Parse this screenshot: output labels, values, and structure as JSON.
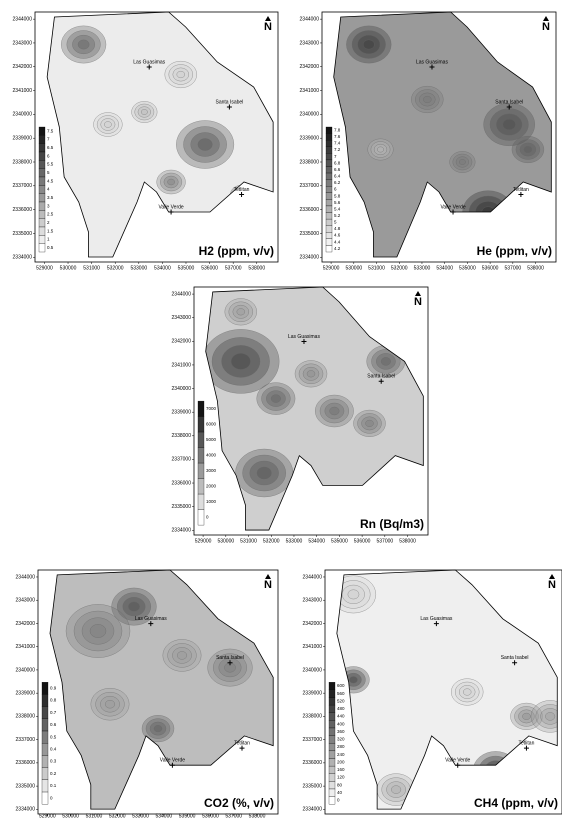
{
  "north_label": "N",
  "maps": [
    {
      "title": "H2 (ppm, v/v)",
      "places": [
        "Las Guasimas",
        "Santa Isabel",
        "Valle Verde",
        "Tetlitan"
      ],
      "xlim": [
        528600,
        538900
      ],
      "ylim": [
        2333800,
        2344300
      ],
      "xticks": [
        529000,
        530000,
        531000,
        532000,
        533000,
        534000,
        535000,
        536000,
        537000,
        538000
      ],
      "yticks": [
        2334000,
        2335000,
        2336000,
        2337000,
        2338000,
        2339000,
        2340000,
        2341000,
        2342000,
        2343000,
        2344000
      ],
      "legend": [
        7.5,
        7,
        6.5,
        6,
        5.5,
        5,
        4.5,
        4,
        3.5,
        3,
        2.5,
        2,
        1.5,
        1,
        0.5
      ]
    },
    {
      "title": "He (ppm, v/v)",
      "places": [
        "Las Guasimas",
        "Santa Isabel",
        "Valle Verde",
        "Tetlitan"
      ],
      "xlim": [
        528600,
        538900
      ],
      "ylim": [
        2333800,
        2344300
      ],
      "xticks": [
        529000,
        530000,
        531000,
        532000,
        533000,
        534000,
        535000,
        536000,
        537000,
        538000
      ],
      "yticks": [
        2334000,
        2335000,
        2336000,
        2337000,
        2338000,
        2339000,
        2340000,
        2341000,
        2342000,
        2343000,
        2344000
      ],
      "legend": [
        7.8,
        7.6,
        7.4,
        7.2,
        7,
        6.8,
        6.6,
        6.4,
        6.2,
        6,
        5.8,
        5.6,
        5.4,
        5.2,
        5,
        4.8,
        4.6,
        4.4,
        4.2
      ]
    },
    {
      "title": "Rn (Bq/m3)",
      "places": [
        "Las Guasimas",
        "Santa Isabel"
      ],
      "xlim": [
        528600,
        538900
      ],
      "ylim": [
        2333800,
        2344300
      ],
      "xticks": [
        529000,
        530000,
        531000,
        532000,
        533000,
        534000,
        535000,
        536000,
        537000,
        538000
      ],
      "yticks": [
        2334000,
        2335000,
        2336000,
        2337000,
        2338000,
        2339000,
        2340000,
        2341000,
        2342000,
        2343000,
        2344000
      ],
      "legend": [
        7000,
        6000,
        5000,
        4000,
        3000,
        2000,
        1000,
        0
      ]
    },
    {
      "title": "CO2 (%, v/v)",
      "places": [
        "Las Guasimas",
        "Santa Isabel",
        "Valle Verde",
        "Tetlitan"
      ],
      "xlim": [
        528600,
        538900
      ],
      "ylim": [
        2333800,
        2344300
      ],
      "xticks": [
        529000,
        530000,
        531000,
        532000,
        533000,
        534000,
        535000,
        536000,
        537000,
        538000
      ],
      "yticks": [
        2334000,
        2335000,
        2336000,
        2337000,
        2338000,
        2339000,
        2340000,
        2341000,
        2342000,
        2343000,
        2344000
      ],
      "legend": [
        0.9,
        0.8,
        0.7,
        0.6,
        0.5,
        0.4,
        0.3,
        0.2,
        0.1,
        0
      ]
    },
    {
      "title": "CH4 (ppm, v/v)",
      "places": [
        "Las Guasimas",
        "Santa Isabel",
        "Valle Verde",
        "Tetlitan"
      ],
      "xlim": [
        528600,
        538900
      ],
      "ylim": [
        2333800,
        2344300
      ],
      "yticks": [
        2334000,
        2335000,
        2336000,
        2337000,
        2338000,
        2339000,
        2340000,
        2341000,
        2342000,
        2343000,
        2344000
      ],
      "legend": [
        600,
        560,
        520,
        480,
        440,
        400,
        360,
        320,
        280,
        240,
        200,
        160,
        120,
        80,
        40,
        0
      ]
    }
  ]
}
